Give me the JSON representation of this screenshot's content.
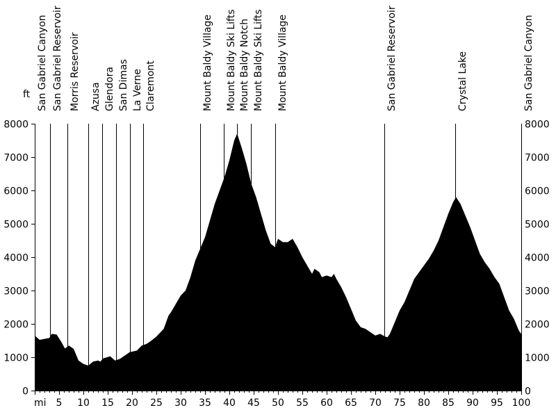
{
  "chart_data": {
    "type": "area",
    "title": "",
    "xlabel": "mi",
    "ylabel": "ft",
    "xlim": [
      0,
      100
    ],
    "ylim": [
      0,
      8000
    ],
    "x_ticks": [
      "5",
      "10",
      "15",
      "20",
      "25",
      "30",
      "35",
      "40",
      "45",
      "50",
      "55",
      "60",
      "65",
      "70",
      "75",
      "80",
      "85",
      "90",
      "95",
      "100"
    ],
    "x_tick_values": [
      5,
      10,
      15,
      20,
      25,
      30,
      35,
      40,
      45,
      50,
      55,
      60,
      65,
      70,
      75,
      80,
      85,
      90,
      95,
      100
    ],
    "y_ticks": [
      "0",
      "1000",
      "2000",
      "3000",
      "4000",
      "5000",
      "6000",
      "7000",
      "8000"
    ],
    "y_tick_values": [
      0,
      1000,
      2000,
      3000,
      4000,
      5000,
      6000,
      7000,
      8000
    ],
    "fill_color": "#000000",
    "profile": [
      [
        0,
        1650
      ],
      [
        1,
        1520
      ],
      [
        2,
        1550
      ],
      [
        3,
        1580
      ],
      [
        3.5,
        1700
      ],
      [
        4.5,
        1680
      ],
      [
        5.5,
        1450
      ],
      [
        6.2,
        1260
      ],
      [
        7,
        1350
      ],
      [
        8,
        1250
      ],
      [
        9,
        900
      ],
      [
        10,
        800
      ],
      [
        11,
        750
      ],
      [
        12,
        870
      ],
      [
        13,
        900
      ],
      [
        13.5,
        870
      ],
      [
        14,
        960
      ],
      [
        15.5,
        1030
      ],
      [
        16.5,
        900
      ],
      [
        17.5,
        950
      ],
      [
        18.5,
        1050
      ],
      [
        19.5,
        1150
      ],
      [
        21,
        1200
      ],
      [
        22,
        1350
      ],
      [
        23,
        1400
      ],
      [
        24,
        1500
      ],
      [
        25,
        1620
      ],
      [
        26.5,
        1850
      ],
      [
        27.5,
        2250
      ],
      [
        28,
        2350
      ],
      [
        29,
        2600
      ],
      [
        30,
        2850
      ],
      [
        31,
        3000
      ],
      [
        32,
        3400
      ],
      [
        33,
        3900
      ],
      [
        34,
        4250
      ],
      [
        35,
        4600
      ],
      [
        36,
        5100
      ],
      [
        37,
        5600
      ],
      [
        38,
        6000
      ],
      [
        39,
        6400
      ],
      [
        40,
        6900
      ],
      [
        41,
        7500
      ],
      [
        41.6,
        7700
      ],
      [
        42.5,
        7300
      ],
      [
        43.5,
        6800
      ],
      [
        44.5,
        6200
      ],
      [
        45.5,
        5800
      ],
      [
        46.5,
        5300
      ],
      [
        47.5,
        4800
      ],
      [
        48.5,
        4400
      ],
      [
        49.4,
        4300
      ],
      [
        50,
        4550
      ],
      [
        51,
        4450
      ],
      [
        52,
        4450
      ],
      [
        53,
        4550
      ],
      [
        54,
        4300
      ],
      [
        55,
        4000
      ],
      [
        56,
        3750
      ],
      [
        57,
        3500
      ],
      [
        57.5,
        3650
      ],
      [
        58.5,
        3550
      ],
      [
        59,
        3400
      ],
      [
        60,
        3450
      ],
      [
        61,
        3400
      ],
      [
        61.5,
        3500
      ],
      [
        62,
        3350
      ],
      [
        63,
        3100
      ],
      [
        64,
        2800
      ],
      [
        65,
        2450
      ],
      [
        66,
        2100
      ],
      [
        67,
        1900
      ],
      [
        68,
        1850
      ],
      [
        69,
        1750
      ],
      [
        70,
        1650
      ],
      [
        71,
        1700
      ],
      [
        72,
        1620
      ],
      [
        72.5,
        1600
      ],
      [
        73,
        1700
      ],
      [
        74,
        2050
      ],
      [
        75,
        2400
      ],
      [
        76,
        2650
      ],
      [
        77,
        3000
      ],
      [
        78,
        3350
      ],
      [
        79,
        3550
      ],
      [
        80,
        3750
      ],
      [
        81,
        3950
      ],
      [
        82,
        4200
      ],
      [
        83,
        4500
      ],
      [
        84,
        4900
      ],
      [
        85,
        5300
      ],
      [
        86,
        5650
      ],
      [
        86.6,
        5800
      ],
      [
        87.5,
        5600
      ],
      [
        88.5,
        5250
      ],
      [
        89.5,
        4900
      ],
      [
        90.5,
        4500
      ],
      [
        91.5,
        4100
      ],
      [
        92.5,
        3850
      ],
      [
        93.5,
        3650
      ],
      [
        94.5,
        3400
      ],
      [
        95.5,
        3200
      ],
      [
        96.5,
        2800
      ],
      [
        97.5,
        2400
      ],
      [
        98.5,
        2150
      ],
      [
        99.5,
        1800
      ],
      [
        100,
        1700
      ]
    ],
    "waypoints": [
      {
        "name": "San Gabriel Canyon",
        "mile": 0
      },
      {
        "name": "San Gabriel Reservoir",
        "mile": 3.1
      },
      {
        "name": "Morris Reservoir",
        "mile": 6.7
      },
      {
        "name": "Azusa",
        "mile": 11
      },
      {
        "name": "Glendora",
        "mile": 13.9
      },
      {
        "name": "San Dimas",
        "mile": 16.7
      },
      {
        "name": "La Verne",
        "mile": 19.6
      },
      {
        "name": "Claremont",
        "mile": 22.3
      },
      {
        "name": "Mount Baldy Village",
        "mile": 34
      },
      {
        "name": "Mount Baldy Ski Lifts",
        "mile": 38.9
      },
      {
        "name": "Mount Baldy Notch",
        "mile": 41.6
      },
      {
        "name": "Mount Baldy Ski Lifts",
        "mile": 44.4
      },
      {
        "name": "Mount Baldy Village",
        "mile": 49.4
      },
      {
        "name": "San Gabriel Reservoir",
        "mile": 71.9
      },
      {
        "name": "Crystal Lake",
        "mile": 86.4
      },
      {
        "name": "San Gabriel Canyon",
        "mile": 100
      }
    ]
  }
}
